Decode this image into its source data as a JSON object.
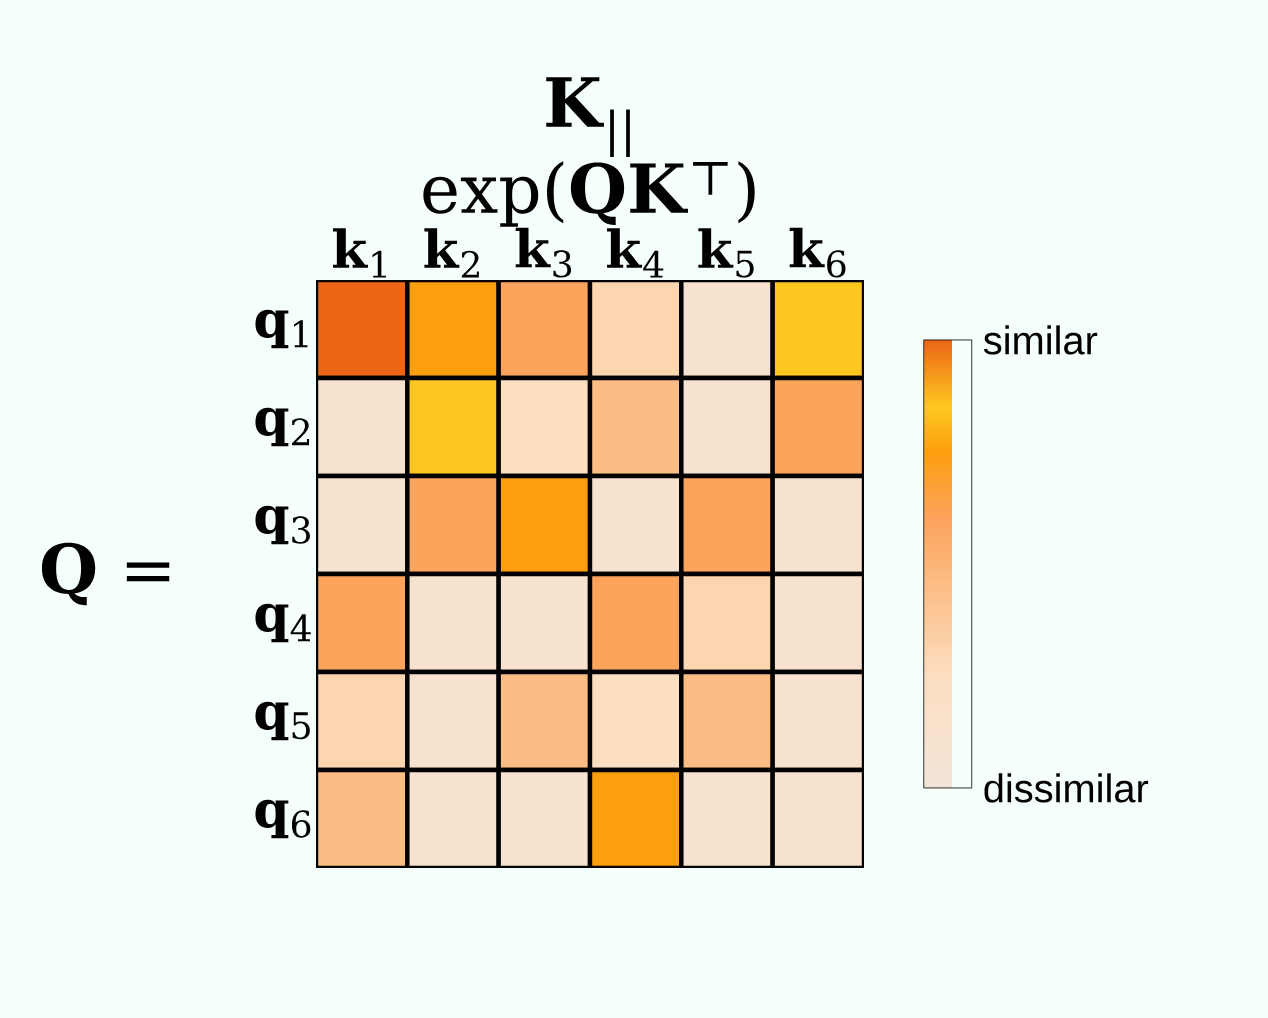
{
  "chart_data": {
    "type": "heatmap",
    "title": "**K**$_{||}$",
    "ylabel": "**Q** =",
    "xlabel": "exp(**QK**$^{⊤}$)",
    "categories": [
      "**k**$_{1}$",
      "**k**$_{2}$",
      "**k**$_{3}$",
      "**k**$_{4}$",
      "**k**$_{5}$",
      "**k**$_{6}$"
    ],
    "y_categories": [
      "**q**$_{1}$",
      "**q**$_{2}$",
      "**q**$_{3}$",
      "**q**$_{4}$",
      "**q**$_{5}$",
      "**q**$_{6}$"
    ],
    "cells": [
      [
        1.0,
        0.75,
        0.6,
        0.3,
        0.1,
        0.85
      ],
      [
        0.1,
        0.85,
        0.25,
        0.45,
        0.1,
        0.6
      ],
      [
        0.1,
        0.6,
        0.75,
        0.1,
        0.6,
        0.1
      ],
      [
        0.6,
        0.1,
        0.1,
        0.6,
        0.3,
        0.1
      ],
      [
        0.3,
        0.1,
        0.45,
        0.25,
        0.45,
        0.1
      ],
      [
        0.45,
        0.1,
        0.1,
        0.75,
        0.1,
        0.1
      ]
    ],
    "clim": [
      0,
      1
    ],
    "cticks": [
      {
        "value": 0,
        "label": "dissimilar"
      },
      {
        "value": 1,
        "label": "similar"
      }
    ]
  }
}
